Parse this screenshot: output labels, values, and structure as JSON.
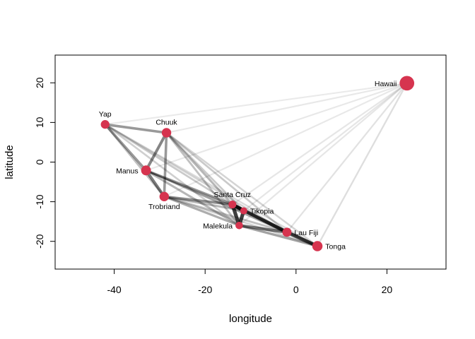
{
  "chart_data": {
    "type": "scatter",
    "xlabel": "longitude",
    "ylabel": "latitude",
    "xlim": [
      -53,
      33
    ],
    "ylim": [
      -27,
      27
    ],
    "xticks": [
      -40,
      -20,
      0,
      20
    ],
    "yticks": [
      -20,
      -10,
      0,
      10,
      20
    ],
    "node_color": "#D6344F",
    "edge_color": "#000000",
    "nodes": [
      {
        "name": "Malekula",
        "x": -12.5,
        "y": -16.0,
        "size": 1.0,
        "label_side": "left"
      },
      {
        "name": "Tikopia",
        "x": -11.5,
        "y": -12.3,
        "size": 0.9,
        "label_side": "right"
      },
      {
        "name": "Santa Cruz",
        "x": -14.0,
        "y": -10.7,
        "size": 1.1,
        "label_side": "above"
      },
      {
        "name": "Yap",
        "x": -42.0,
        "y": 9.5,
        "size": 1.3,
        "label_side": "above"
      },
      {
        "name": "Lau Fiji",
        "x": -2.0,
        "y": -17.7,
        "size": 1.4,
        "label_side": "right"
      },
      {
        "name": "Trobriand",
        "x": -29.0,
        "y": -8.7,
        "size": 1.5,
        "label_side": "below"
      },
      {
        "name": "Chuuk",
        "x": -28.5,
        "y": 7.4,
        "size": 1.5,
        "label_side": "above"
      },
      {
        "name": "Manus",
        "x": -33.0,
        "y": -2.1,
        "size": 1.6,
        "label_side": "left"
      },
      {
        "name": "Tonga",
        "x": 4.7,
        "y": -21.2,
        "size": 1.7,
        "label_side": "right"
      },
      {
        "name": "Hawaii",
        "x": 24.4,
        "y": 19.9,
        "size": 2.8,
        "label_side": "left"
      }
    ],
    "edges": [
      {
        "source": "Malekula",
        "target": "Tikopia",
        "strength": 0.9
      },
      {
        "source": "Malekula",
        "target": "Santa Cruz",
        "strength": 0.9
      },
      {
        "source": "Tikopia",
        "target": "Santa Cruz",
        "strength": 0.88
      },
      {
        "source": "Santa Cruz",
        "target": "Lau Fiji",
        "strength": 0.85
      },
      {
        "source": "Malekula",
        "target": "Lau Fiji",
        "strength": 0.65
      },
      {
        "source": "Lau Fiji",
        "target": "Tonga",
        "strength": 0.85
      },
      {
        "source": "Tikopia",
        "target": "Lau Fiji",
        "strength": 0.45
      },
      {
        "source": "Malekula",
        "target": "Tonga",
        "strength": 0.4
      },
      {
        "source": "Santa Cruz",
        "target": "Tonga",
        "strength": 0.3
      },
      {
        "source": "Yap",
        "target": "Chuuk",
        "strength": 0.45
      },
      {
        "source": "Yap",
        "target": "Manus",
        "strength": 0.45
      },
      {
        "source": "Chuuk",
        "target": "Manus",
        "strength": 0.55
      },
      {
        "source": "Manus",
        "target": "Trobriand",
        "strength": 0.6
      },
      {
        "source": "Chuuk",
        "target": "Trobriand",
        "strength": 0.45
      },
      {
        "source": "Trobriand",
        "target": "Santa Cruz",
        "strength": 0.5
      },
      {
        "source": "Trobriand",
        "target": "Malekula",
        "strength": 0.35
      },
      {
        "source": "Trobriand",
        "target": "Tikopia",
        "strength": 0.3
      },
      {
        "source": "Trobriand",
        "target": "Lau Fiji",
        "strength": 0.25
      },
      {
        "source": "Manus",
        "target": "Santa Cruz",
        "strength": 0.45
      },
      {
        "source": "Manus",
        "target": "Malekula",
        "strength": 0.3
      },
      {
        "source": "Manus",
        "target": "Lau Fiji",
        "strength": 0.22
      },
      {
        "source": "Manus",
        "target": "Tikopia",
        "strength": 0.22
      },
      {
        "source": "Chuuk",
        "target": "Santa Cruz",
        "strength": 0.3
      },
      {
        "source": "Chuuk",
        "target": "Malekula",
        "strength": 0.25
      },
      {
        "source": "Chuuk",
        "target": "Lau Fiji",
        "strength": 0.2
      },
      {
        "source": "Chuuk",
        "target": "Tikopia",
        "strength": 0.2
      },
      {
        "source": "Chuuk",
        "target": "Tonga",
        "strength": 0.15
      },
      {
        "source": "Yap",
        "target": "Trobriand",
        "strength": 0.25
      },
      {
        "source": "Yap",
        "target": "Santa Cruz",
        "strength": 0.2
      },
      {
        "source": "Yap",
        "target": "Malekula",
        "strength": 0.18
      },
      {
        "source": "Yap",
        "target": "Lau Fiji",
        "strength": 0.15
      },
      {
        "source": "Yap",
        "target": "Tonga",
        "strength": 0.12
      },
      {
        "source": "Trobriand",
        "target": "Tonga",
        "strength": 0.15
      },
      {
        "source": "Manus",
        "target": "Tonga",
        "strength": 0.15
      },
      {
        "source": "Hawaii",
        "target": "Tonga",
        "strength": 0.1
      },
      {
        "source": "Hawaii",
        "target": "Lau Fiji",
        "strength": 0.08
      },
      {
        "source": "Hawaii",
        "target": "Malekula",
        "strength": 0.06
      },
      {
        "source": "Hawaii",
        "target": "Santa Cruz",
        "strength": 0.06
      },
      {
        "source": "Hawaii",
        "target": "Tikopia",
        "strength": 0.06
      },
      {
        "source": "Hawaii",
        "target": "Trobriand",
        "strength": 0.05
      },
      {
        "source": "Hawaii",
        "target": "Manus",
        "strength": 0.05
      },
      {
        "source": "Hawaii",
        "target": "Chuuk",
        "strength": 0.05
      },
      {
        "source": "Hawaii",
        "target": "Yap",
        "strength": 0.04
      }
    ]
  }
}
